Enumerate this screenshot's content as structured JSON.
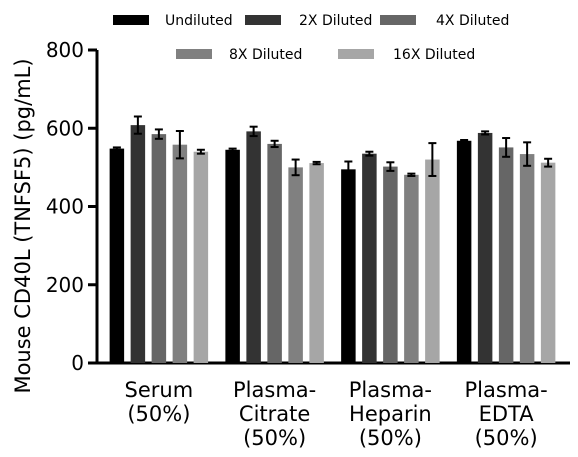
{
  "chart_data": {
    "type": "bar",
    "title": "",
    "xlabel": "",
    "ylabel": "Mouse CD40L (TNFSF5) (pg/mL)",
    "ylim": [
      0,
      800
    ],
    "yticks": [
      "0",
      "200",
      "400",
      "600",
      "800"
    ],
    "grid": false,
    "legend_position": "top",
    "categories": [
      {
        "line1": "Serum",
        "line2": "(50%)",
        "line3": ""
      },
      {
        "line1": "Plasma-",
        "line2": "Citrate",
        "line3": "(50%)"
      },
      {
        "line1": "Plasma-",
        "line2": "Heparin",
        "line3": "(50%)"
      },
      {
        "line1": "Plasma-",
        "line2": "EDTA",
        "line3": "(50%)"
      }
    ],
    "series": [
      {
        "name": "Undiluted",
        "color": "#000000",
        "values": [
          548,
          545,
          495,
          568
        ],
        "errors": [
          3,
          3,
          20,
          2
        ]
      },
      {
        "name": "2X Diluted",
        "color": "#333333",
        "values": [
          608,
          592,
          535,
          588
        ],
        "errors": [
          22,
          12,
          5,
          4
        ]
      },
      {
        "name": "4X Diluted",
        "color": "#666666",
        "values": [
          585,
          560,
          502,
          551
        ],
        "errors": [
          12,
          8,
          11,
          24
        ]
      },
      {
        "name": "8X Diluted",
        "color": "#808080",
        "values": [
          558,
          500,
          481,
          534
        ],
        "errors": [
          35,
          20,
          3,
          30
        ]
      },
      {
        "name": "16X Diluted",
        "color": "#a6a6a6",
        "values": [
          540,
          511,
          520,
          512
        ],
        "errors": [
          5,
          3,
          42,
          10
        ]
      }
    ]
  }
}
